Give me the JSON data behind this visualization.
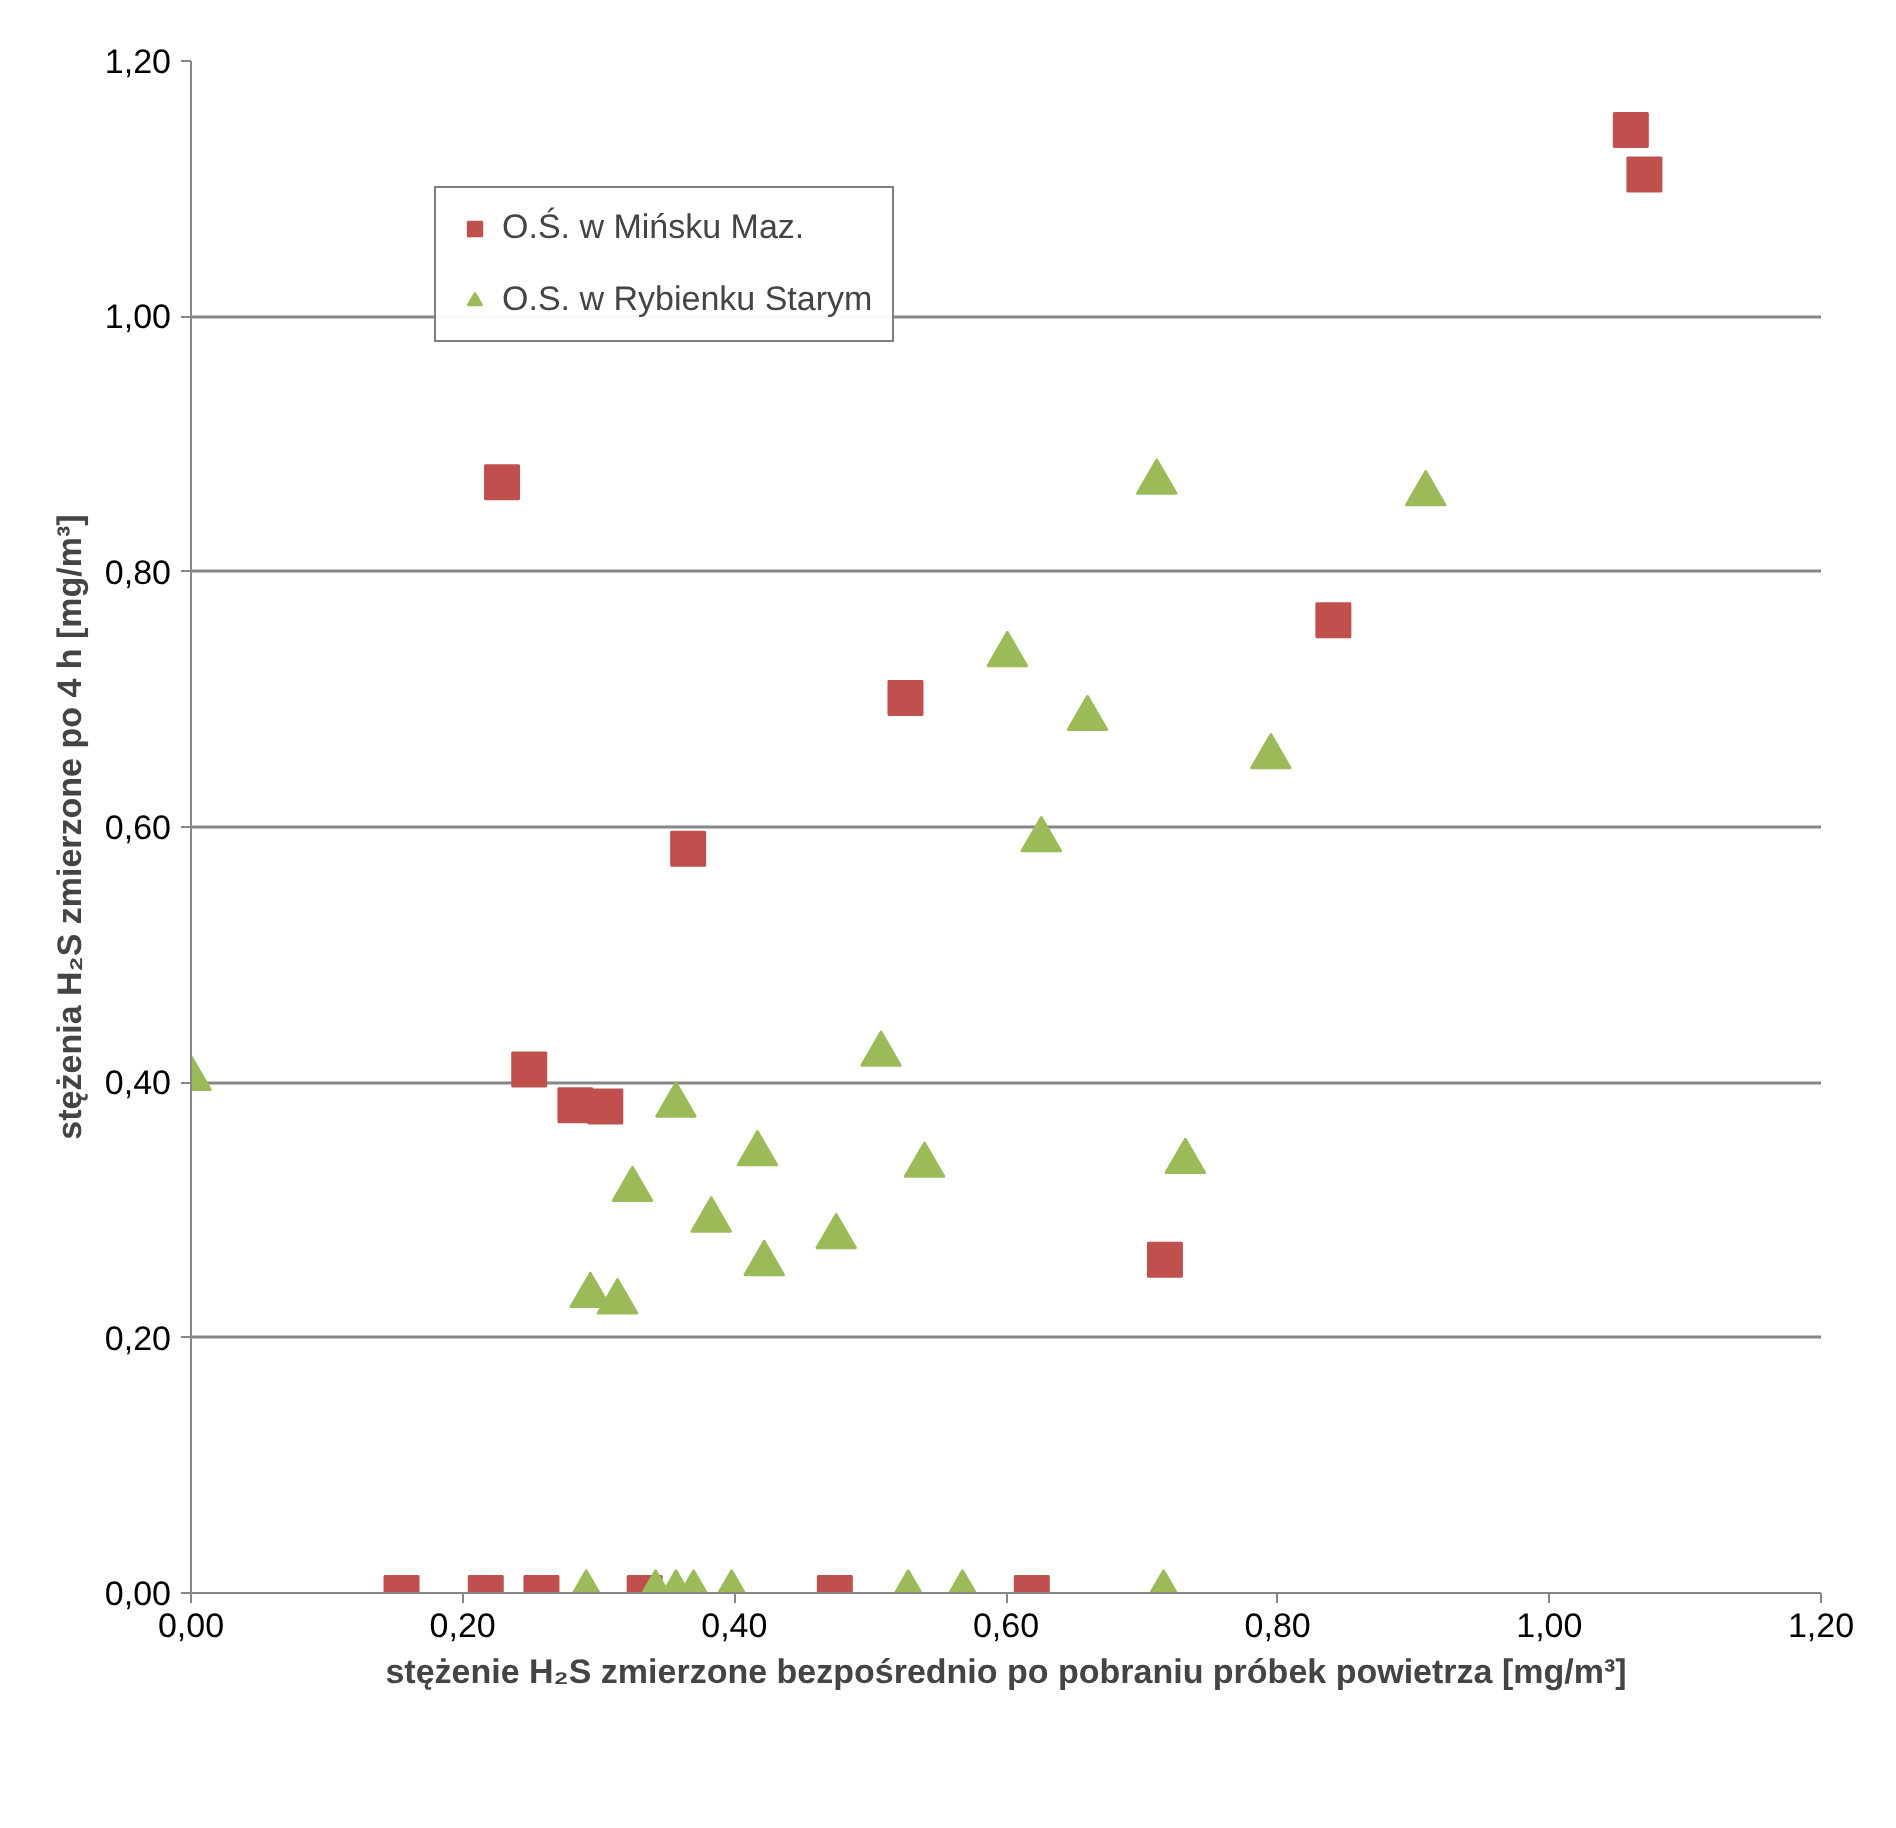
{
  "chart_data": {
    "type": "scatter",
    "xlabel": "stężenie H₂S zmierzone bezpośrednio po pobraniu próbek powietrza [mg/m³]",
    "ylabel": "stężenia H₂S zmierzone po 4 h [mg/m³]",
    "xlim": [
      0,
      1.2
    ],
    "ylim": [
      0,
      1.2
    ],
    "xticks": [
      {
        "value": 0,
        "label": "0,00"
      },
      {
        "value": 0.2,
        "label": "0,20"
      },
      {
        "value": 0.4,
        "label": "0,40"
      },
      {
        "value": 0.6,
        "label": "0,60"
      },
      {
        "value": 0.8,
        "label": "0,80"
      },
      {
        "value": 1.0,
        "label": "1,00"
      },
      {
        "value": 1.2,
        "label": "1,20"
      }
    ],
    "yticks": [
      {
        "value": 0,
        "label": "0,00"
      },
      {
        "value": 0.2,
        "label": "0,20"
      },
      {
        "value": 0.4,
        "label": "0,40"
      },
      {
        "value": 0.6,
        "label": "0,60"
      },
      {
        "value": 0.8,
        "label": "0,80"
      },
      {
        "value": 1.0,
        "label": "1,00"
      },
      {
        "value": 1.2,
        "label": "1,20"
      }
    ],
    "grid": "y",
    "legend": "top left",
    "series": [
      {
        "name": "O.Ś. w Mińsku Maz.",
        "color": "#c0504d",
        "marker": "square",
        "x": [
          1.06,
          1.07,
          0.229,
          0.841,
          0.526,
          0.366,
          0.249,
          0.283,
          0.305,
          0.717,
          0.155,
          0.217,
          0.258,
          0.334,
          0.474,
          0.619
        ],
        "values": [
          1.146,
          1.111,
          0.87,
          0.762,
          0.701,
          0.583,
          0.41,
          0.382,
          0.381,
          0.261,
          0,
          0,
          0,
          0,
          0,
          0
        ]
      },
      {
        "name": "O.S. w Rybienku Starym",
        "color": "#9bbb59",
        "marker": "triangle",
        "x": [
          0,
          0.909,
          0.711,
          0.601,
          0.66,
          0.626,
          0.795,
          0.508,
          0.357,
          0.325,
          0.417,
          0.383,
          0.422,
          0.475,
          0.54,
          0.294,
          0.314,
          0.732,
          0.291,
          0.342,
          0.357,
          0.37,
          0.398,
          0.528,
          0.568,
          0.716
        ],
        "values": [
          0.403,
          0.861,
          0.87,
          0.735,
          0.685,
          0.59,
          0.655,
          0.422,
          0.382,
          0.316,
          0.344,
          0.292,
          0.258,
          0.279,
          0.335,
          0.233,
          0.228,
          0.338,
          0,
          0,
          0,
          0,
          0,
          0,
          0,
          0
        ]
      }
    ]
  }
}
